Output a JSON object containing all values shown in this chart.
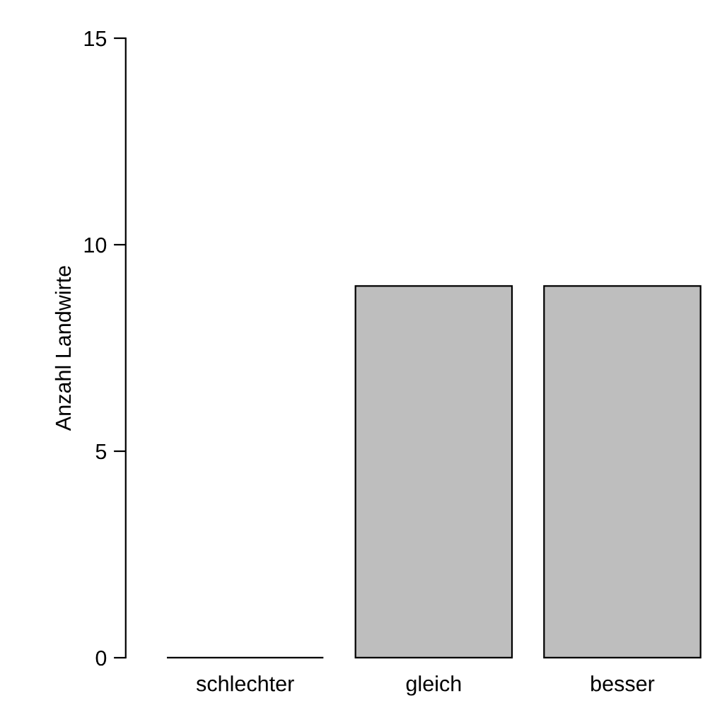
{
  "chart_data": {
    "type": "bar",
    "ylabel": "Anzahl Landwirte",
    "categories": [
      "schlechter",
      "gleich",
      "besser"
    ],
    "values": [
      0,
      9,
      9
    ],
    "color": "#bebebe",
    "ylim": [
      0,
      15
    ],
    "yticks": [
      0,
      5,
      10,
      15
    ],
    "grid": false
  }
}
